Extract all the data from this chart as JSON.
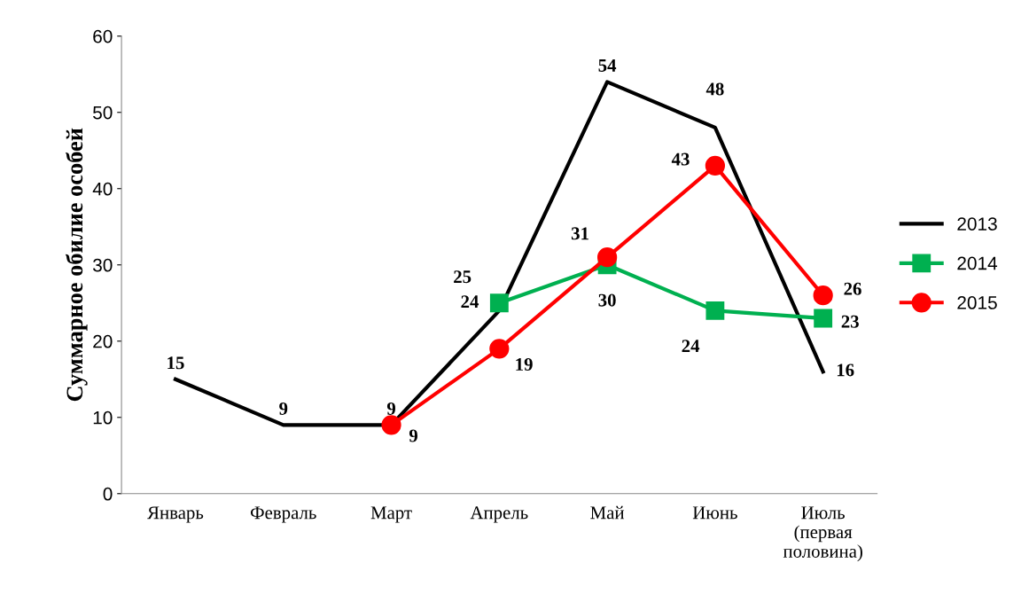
{
  "chart_data": {
    "type": "line",
    "ylabel": "Суммарное обилие особей",
    "categories": [
      "Январь",
      "Февраль",
      "Март",
      "Апрель",
      "Май",
      "Июнь",
      "Июль\n(первая\nполовина)"
    ],
    "series": [
      {
        "name": "2013",
        "color": "#000000",
        "marker": "none",
        "values": [
          15,
          9,
          9,
          24,
          54,
          48,
          16
        ]
      },
      {
        "name": "2014",
        "color": "#00b050",
        "marker": "square",
        "values": [
          null,
          null,
          null,
          25,
          30,
          24,
          23
        ]
      },
      {
        "name": "2015",
        "color": "#ff0000",
        "marker": "circle",
        "values": [
          null,
          null,
          9,
          19,
          31,
          43,
          26
        ]
      }
    ],
    "ylim": [
      0,
      60
    ],
    "yticks": [
      0,
      10,
      20,
      30,
      40,
      50,
      60
    ],
    "grid": false,
    "legend": "right",
    "data_labels": true
  }
}
